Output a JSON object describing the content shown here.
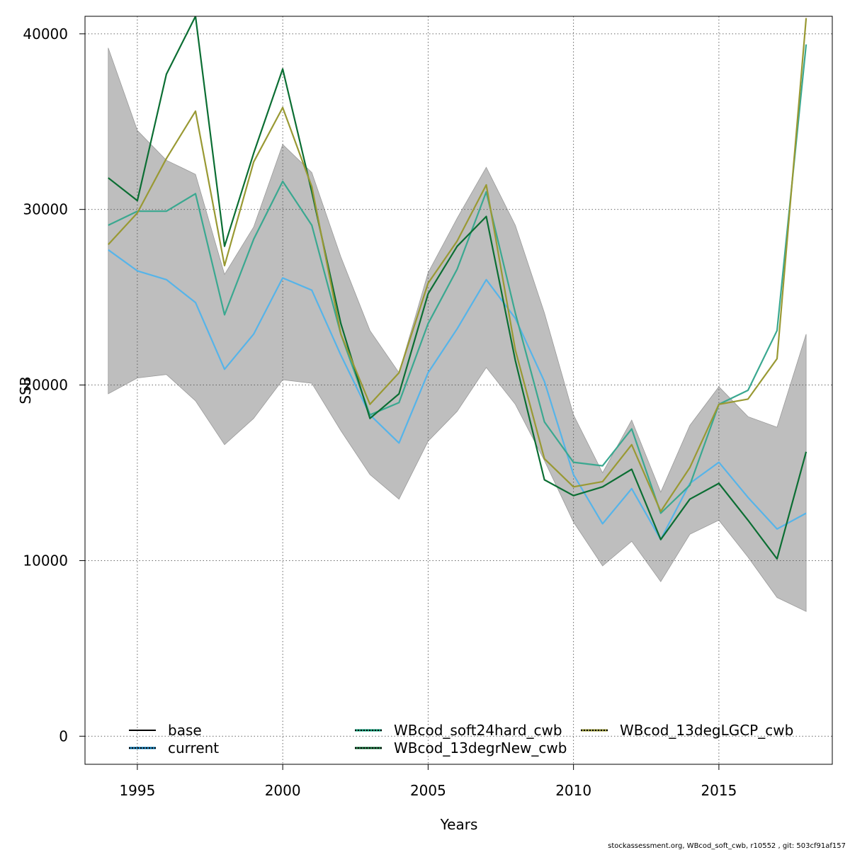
{
  "chart_data": {
    "type": "line",
    "title": "",
    "xlabel": "Years",
    "ylabel": "SSB",
    "xlim": [
      1993.2,
      2018.9
    ],
    "ylim": [
      -1600,
      41000
    ],
    "grid": true,
    "x_ticks": [
      1995,
      2000,
      2005,
      2010,
      2015
    ],
    "y_ticks": [
      0,
      10000,
      20000,
      30000,
      40000
    ],
    "x_tick_labels": [
      "1995",
      "2000",
      "2005",
      "2010",
      "2015"
    ],
    "y_tick_labels": [
      "0",
      "10000",
      "20000",
      "30000",
      "40000"
    ],
    "legend_placement": "bottom",
    "x": [
      1994,
      1995,
      1996,
      1997,
      1998,
      1999,
      2000,
      2001,
      2002,
      2003,
      2004,
      2005,
      2006,
      2007,
      2008,
      2009,
      2010,
      2011,
      2012,
      2013,
      2014,
      2015,
      2016,
      2017,
      2018
    ],
    "confidence_band": {
      "color": "#bebebe",
      "upper": [
        39200,
        34500,
        32800,
        32000,
        26300,
        29000,
        33700,
        32100,
        27300,
        23100,
        20700,
        26400,
        29500,
        32400,
        29100,
        24100,
        18300,
        15000,
        18000,
        13900,
        17700,
        19900,
        18200,
        17600,
        22900
      ],
      "lower": [
        19500,
        20400,
        20600,
        19100,
        16600,
        18100,
        20300,
        20100,
        17400,
        14900,
        13500,
        16800,
        18500,
        21000,
        18900,
        15700,
        12200,
        9700,
        11100,
        8800,
        11500,
        12300,
        10200,
        7900,
        7100
      ]
    },
    "series": [
      {
        "name": "base",
        "color": "#000000",
        "dashed": false,
        "shown": false,
        "values": [
          27600,
          26500,
          26000,
          24700,
          20900,
          22900,
          26100,
          25400,
          21600,
          18200,
          16700,
          20600,
          23100,
          25900,
          23700,
          20100,
          14900,
          12000,
          14100,
          11100,
          14400,
          15600,
          13600,
          11700,
          12700
        ]
      },
      {
        "name": "current",
        "color": "#56b4e9",
        "dashed": false,
        "shown": true,
        "values": [
          27700,
          26500,
          26000,
          24700,
          20900,
          22900,
          26100,
          25400,
          21700,
          18300,
          16700,
          20700,
          23200,
          26000,
          23800,
          20200,
          14900,
          12100,
          14100,
          11200,
          14400,
          15600,
          13600,
          11800,
          12700
        ]
      },
      {
        "name": "WBcod_soft24hard_cwb",
        "color": "#3aa890",
        "dashed": false,
        "shown": true,
        "values": [
          29100,
          29900,
          29900,
          30900,
          24000,
          28300,
          31600,
          29100,
          22900,
          18300,
          19000,
          23500,
          26600,
          31000,
          24100,
          17900,
          15600,
          15400,
          17500,
          12700,
          14300,
          18900,
          19700,
          23100,
          39400
        ]
      },
      {
        "name": "WBcod_13degrNew_cwb",
        "color": "#0b6e33",
        "dashed": false,
        "shown": true,
        "values": [
          31800,
          30500,
          37700,
          41000,
          27900,
          33200,
          38000,
          31000,
          23500,
          18100,
          19500,
          25200,
          27900,
          29600,
          21400,
          14600,
          13700,
          14200,
          15200,
          11200,
          13500,
          14400,
          12300,
          10100,
          16200
        ]
      },
      {
        "name": "WBcod_13degLGCP_cwb",
        "color": "#999933",
        "dashed": false,
        "shown": true,
        "values": [
          28000,
          29800,
          32900,
          35600,
          26800,
          32700,
          35800,
          31300,
          22900,
          18900,
          20700,
          25800,
          28200,
          31400,
          22000,
          15800,
          14200,
          14500,
          16600,
          12800,
          15300,
          18900,
          19200,
          21500,
          40900
        ]
      }
    ],
    "legend": [
      {
        "label": "base",
        "color": "#000000",
        "style": "solid",
        "col": 0,
        "row": 0
      },
      {
        "label": "current",
        "color": "#0072b2",
        "style": "dotted",
        "col": 0,
        "row": 1
      },
      {
        "label": "WBcod_soft24hard_cwb",
        "color": "#009e73",
        "style": "dotted",
        "col": 1,
        "row": 0
      },
      {
        "label": "WBcod_13degrNew_cwb",
        "color": "#0b6e33",
        "style": "dotted",
        "col": 1,
        "row": 1
      },
      {
        "label": "WBcod_13degLGCP_cwb",
        "color": "#999933",
        "style": "dotted",
        "col": 2,
        "row": 0
      }
    ]
  },
  "footnote": "stockassessment.org, WBcod_soft_cwb, r10552 , git: 503cf91af157"
}
